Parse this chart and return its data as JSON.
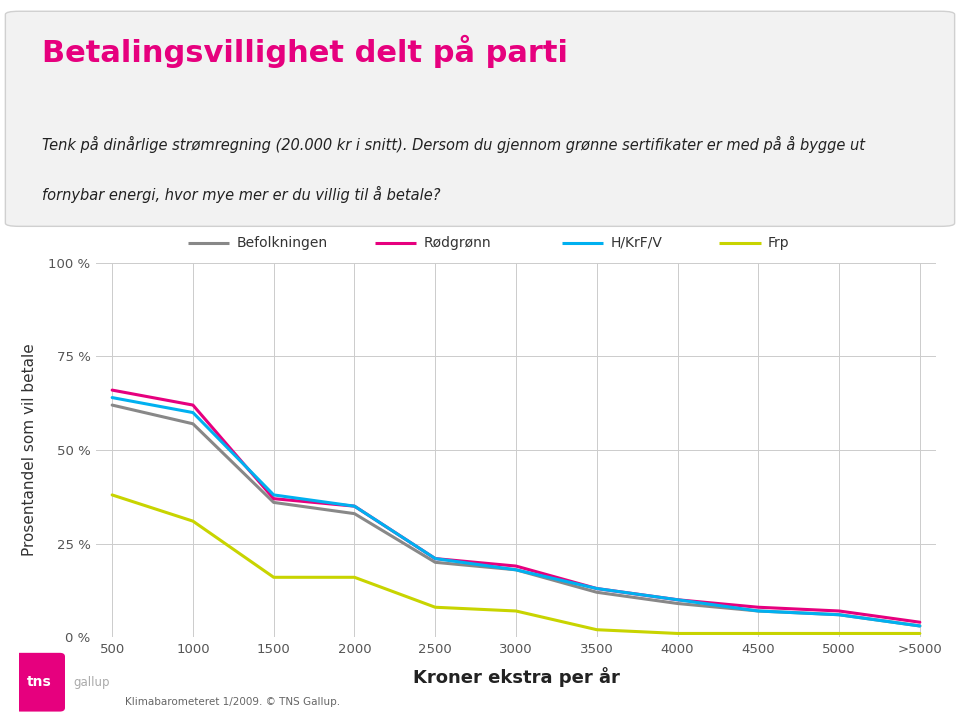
{
  "title": "Betalingsvillighet delt på parti",
  "subtitle_line1": "Tenk på dinårlige strømregning (20.000 kr i snitt). Dersom du gjennom grønne sertifikater er med på å bygge ut",
  "subtitle_line2": "fornybar energi, hvor mye mer er du villig til å betale?",
  "xlabel": "Kroner ekstra per år",
  "ylabel": "Prosentandel som vil betale",
  "footer": "Klimabarometeret 1/2009. © TNS Gallup.",
  "x_labels": [
    "500",
    "1000",
    "1500",
    "2000",
    "2500",
    "3000",
    "3500",
    "4000",
    "4500",
    "5000",
    ">5000"
  ],
  "x_values": [
    0,
    1,
    2,
    3,
    4,
    5,
    6,
    7,
    8,
    9,
    10
  ],
  "series": {
    "Befolkningen": {
      "color": "#888888",
      "values": [
        62,
        57,
        36,
        33,
        20,
        18,
        12,
        9,
        7,
        6,
        3
      ]
    },
    "Rødgrønn": {
      "color": "#e6007e",
      "values": [
        66,
        62,
        37,
        35,
        21,
        19,
        13,
        10,
        8,
        7,
        4
      ]
    },
    "H/KrF/V": {
      "color": "#00b0f0",
      "values": [
        64,
        60,
        38,
        35,
        21,
        18,
        13,
        10,
        7,
        6,
        3
      ]
    },
    "Frp": {
      "color": "#c8d400",
      "values": [
        38,
        31,
        16,
        16,
        8,
        7,
        2,
        1,
        1,
        1,
        1
      ]
    }
  },
  "ylim": [
    0,
    100
  ],
  "yticks": [
    0,
    25,
    50,
    75,
    100
  ],
  "ytick_labels": [
    "0 %",
    "25 %",
    "50 %",
    "75 %",
    "100 %"
  ],
  "title_color": "#e6007e",
  "background_color": "#ffffff",
  "title_fontsize": 22,
  "subtitle_fontsize": 10.5,
  "axis_label_fontsize": 11,
  "tick_fontsize": 9.5,
  "legend_fontsize": 10,
  "line_width": 2.2,
  "header_bg_color": "#f2f2f2",
  "header_border_color": "#d0d0d0"
}
